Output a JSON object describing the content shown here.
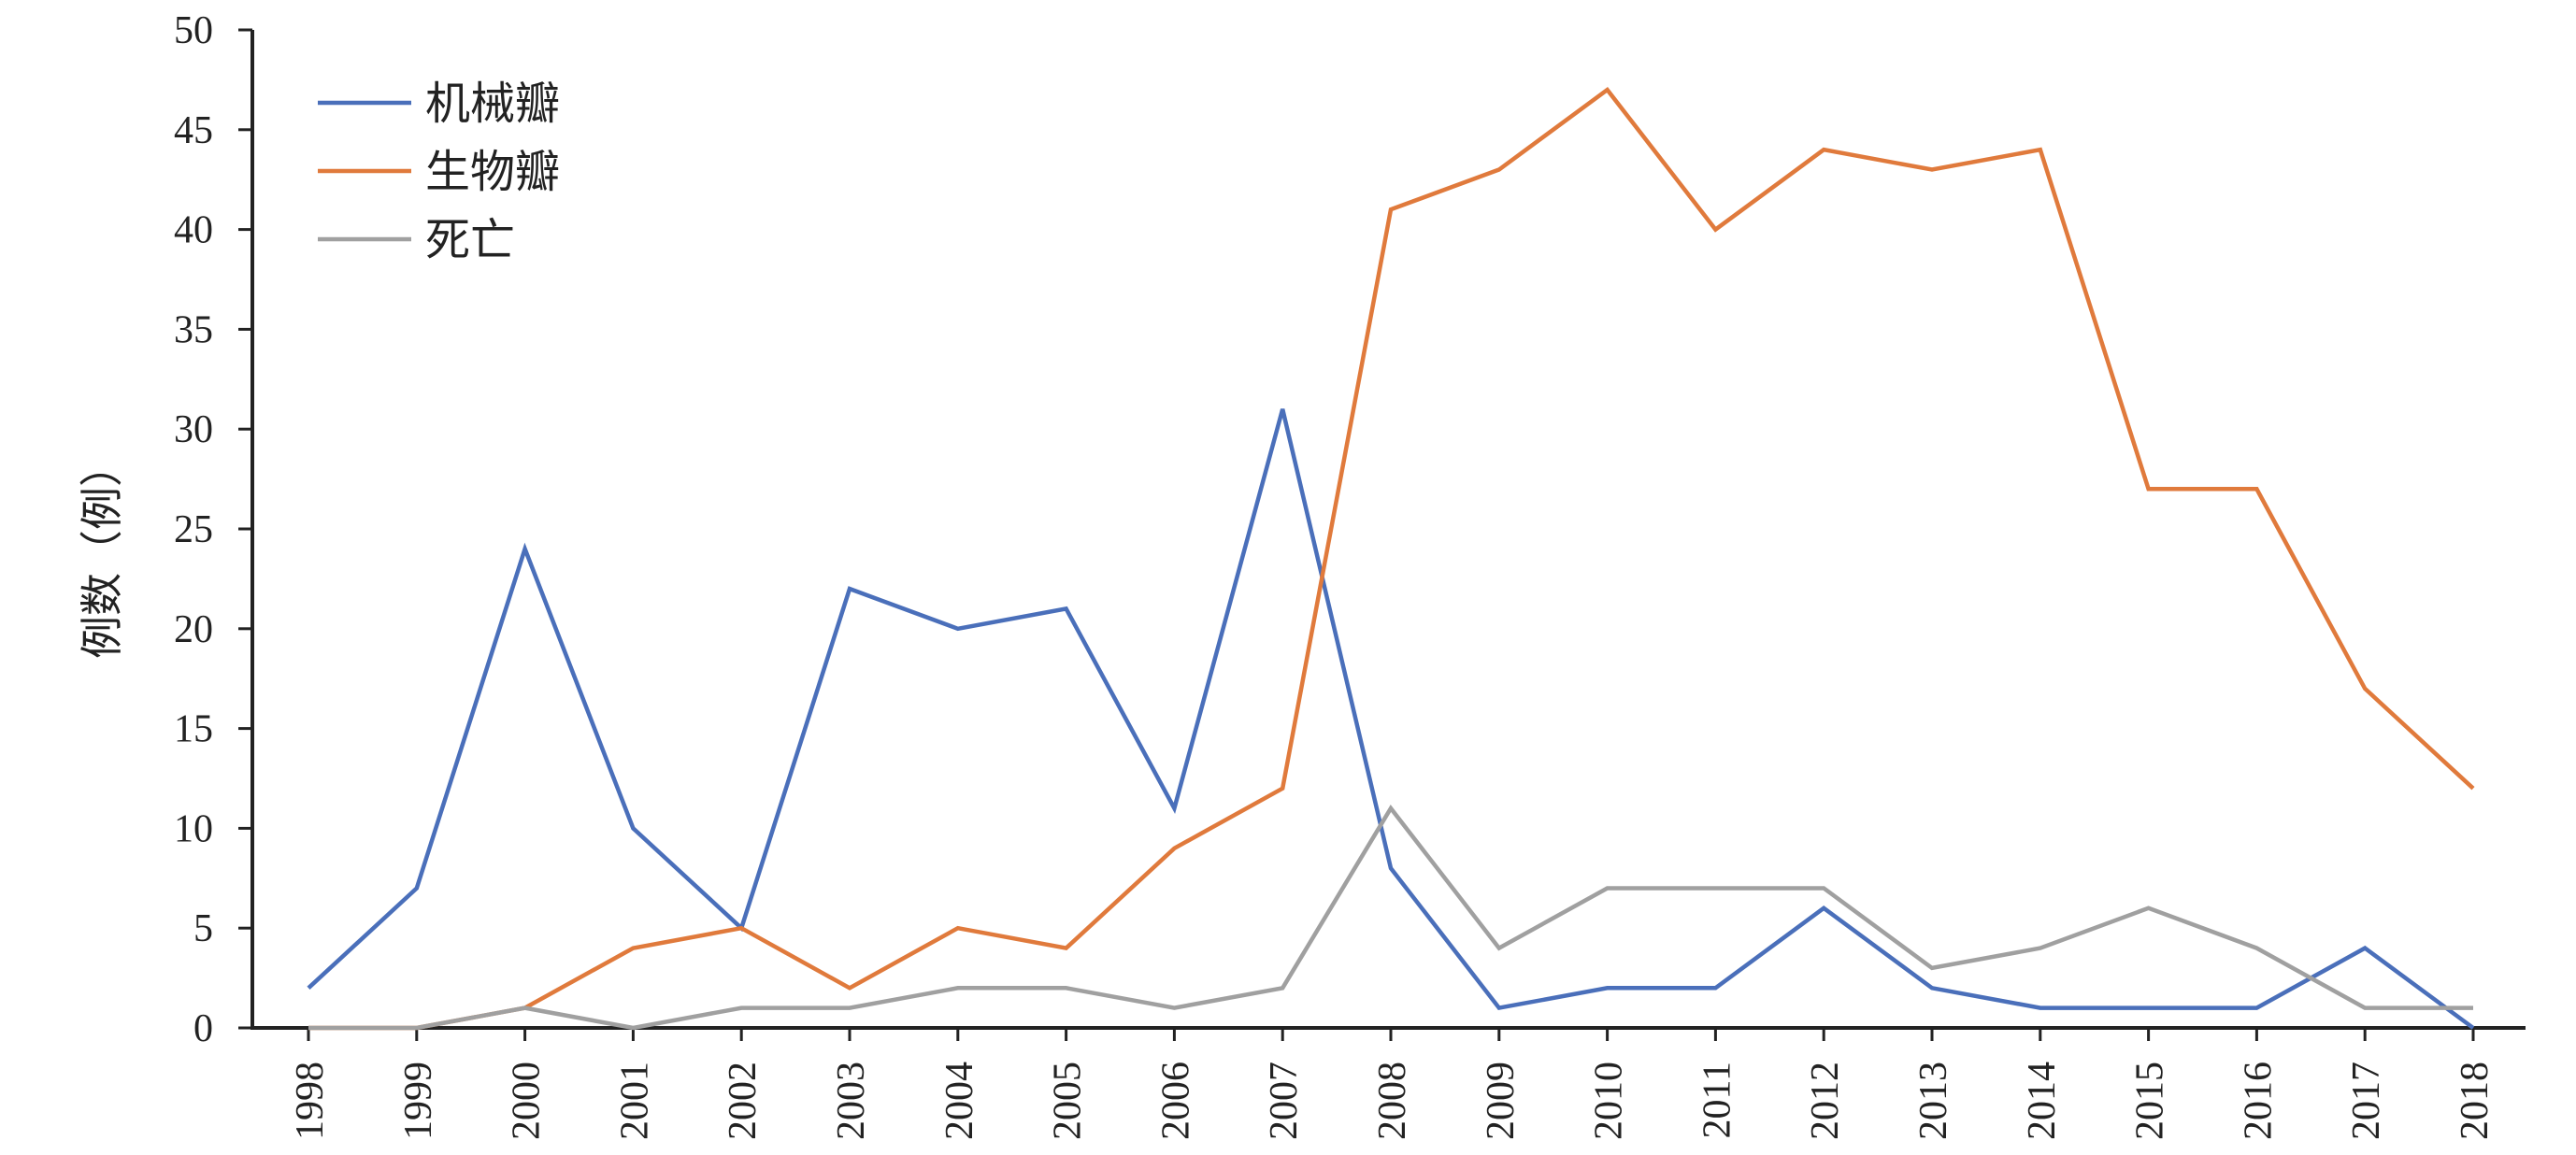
{
  "chart_data": {
    "type": "line",
    "title": "",
    "xlabel": "",
    "ylabel": "例数（例）",
    "ylim": [
      0,
      50
    ],
    "yticks": [
      0,
      5,
      10,
      15,
      20,
      25,
      30,
      35,
      40,
      45,
      50
    ],
    "grid": false,
    "legend_position": "top-left",
    "categories": [
      "1998",
      "1999",
      "2000",
      "2001",
      "2002",
      "2003",
      "2004",
      "2005",
      "2006",
      "2007",
      "2008",
      "2009",
      "2010",
      "2011",
      "2012",
      "2013",
      "2014",
      "2015",
      "2016",
      "2017",
      "2018"
    ],
    "series": [
      {
        "name": "机械瓣",
        "color": "#4a6fba",
        "values": [
          2,
          7,
          24,
          10,
          5,
          22,
          20,
          21,
          11,
          31,
          8,
          1,
          2,
          2,
          6,
          2,
          1,
          1,
          1,
          4,
          0
        ]
      },
      {
        "name": "生物瓣",
        "color": "#e07a3c",
        "values": [
          0,
          0,
          1,
          4,
          5,
          2,
          5,
          4,
          9,
          12,
          41,
          43,
          47,
          40,
          44,
          43,
          44,
          27,
          27,
          17,
          12
        ]
      },
      {
        "name": "死亡",
        "color": "#a0a0a0",
        "values": [
          0,
          0,
          1,
          0,
          1,
          1,
          2,
          2,
          1,
          2,
          11,
          4,
          7,
          7,
          7,
          3,
          4,
          6,
          4,
          1,
          1
        ]
      }
    ]
  }
}
